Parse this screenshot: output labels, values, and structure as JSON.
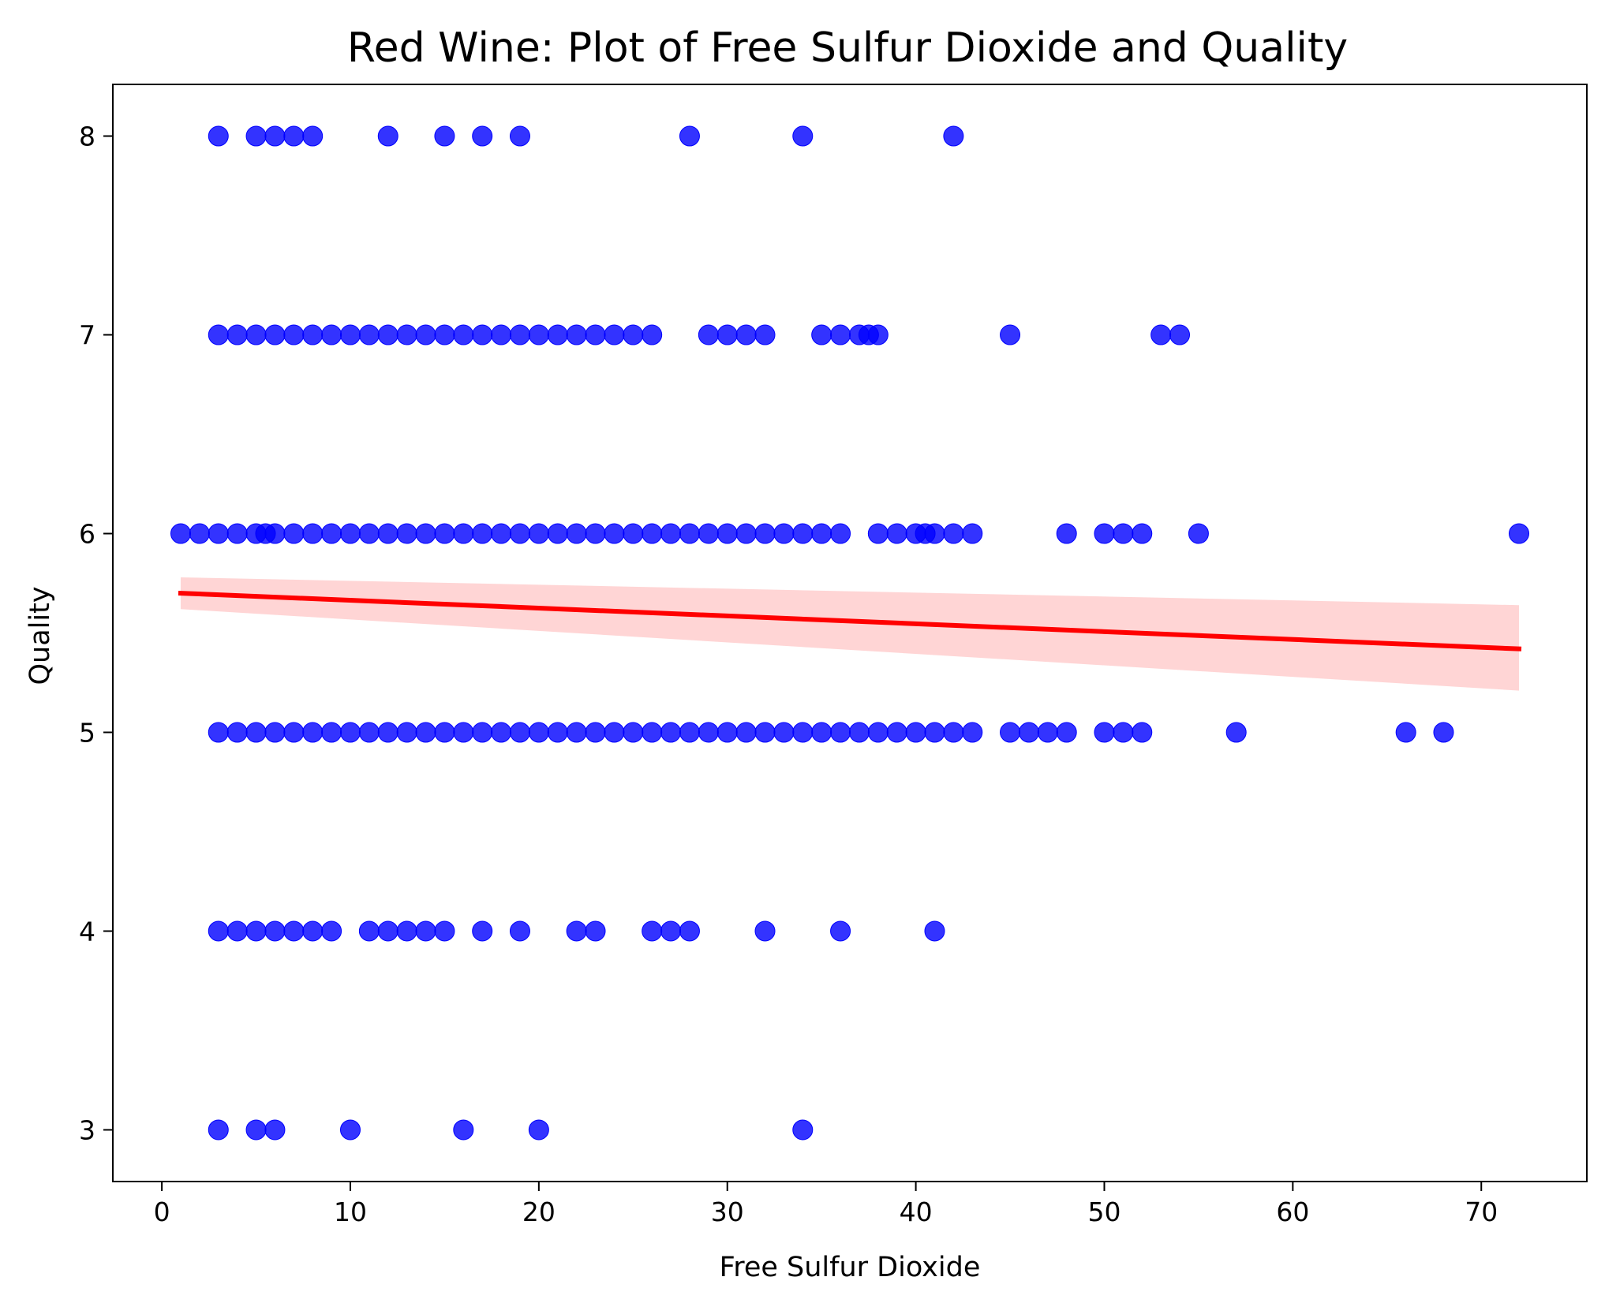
{
  "chart_data": {
    "type": "scatter",
    "title": "Red Wine: Plot of Free Sulfur Dioxide and Quality",
    "xlabel": "Free Sulfur Dioxide",
    "ylabel": "Quality",
    "xlim": [
      -2.6,
      75.6
    ],
    "ylim": [
      2.74,
      8.26
    ],
    "xticks": [
      0,
      10,
      20,
      30,
      40,
      50,
      60,
      70
    ],
    "yticks": [
      3,
      4,
      5,
      6,
      7,
      8
    ],
    "grid": false,
    "colors": {
      "points": "#0000ff",
      "fit_line": "#ff0000",
      "ci_band": "#ffb3b3"
    },
    "series": [
      {
        "type": "scatter",
        "points": [
          [
            3,
            8
          ],
          [
            5,
            8
          ],
          [
            6,
            8
          ],
          [
            7,
            8
          ],
          [
            8,
            8
          ],
          [
            12,
            8
          ],
          [
            15,
            8
          ],
          [
            17,
            8
          ],
          [
            19,
            8
          ],
          [
            28,
            8
          ],
          [
            34,
            8
          ],
          [
            42,
            8
          ],
          [
            3,
            7
          ],
          [
            4,
            7
          ],
          [
            5,
            7
          ],
          [
            6,
            7
          ],
          [
            7,
            7
          ],
          [
            8,
            7
          ],
          [
            9,
            7
          ],
          [
            10,
            7
          ],
          [
            11,
            7
          ],
          [
            12,
            7
          ],
          [
            13,
            7
          ],
          [
            14,
            7
          ],
          [
            15,
            7
          ],
          [
            16,
            7
          ],
          [
            17,
            7
          ],
          [
            18,
            7
          ],
          [
            19,
            7
          ],
          [
            20,
            7
          ],
          [
            21,
            7
          ],
          [
            22,
            7
          ],
          [
            23,
            7
          ],
          [
            24,
            7
          ],
          [
            25,
            7
          ],
          [
            26,
            7
          ],
          [
            29,
            7
          ],
          [
            30,
            7
          ],
          [
            31,
            7
          ],
          [
            32,
            7
          ],
          [
            35,
            7
          ],
          [
            36,
            7
          ],
          [
            37,
            7
          ],
          [
            37.5,
            7
          ],
          [
            38,
            7
          ],
          [
            45,
            7
          ],
          [
            53,
            7
          ],
          [
            54,
            7
          ],
          [
            1,
            6
          ],
          [
            2,
            6
          ],
          [
            3,
            6
          ],
          [
            4,
            6
          ],
          [
            5,
            6
          ],
          [
            5.5,
            6
          ],
          [
            6,
            6
          ],
          [
            7,
            6
          ],
          [
            8,
            6
          ],
          [
            9,
            6
          ],
          [
            10,
            6
          ],
          [
            11,
            6
          ],
          [
            12,
            6
          ],
          [
            13,
            6
          ],
          [
            14,
            6
          ],
          [
            15,
            6
          ],
          [
            16,
            6
          ],
          [
            17,
            6
          ],
          [
            18,
            6
          ],
          [
            19,
            6
          ],
          [
            20,
            6
          ],
          [
            21,
            6
          ],
          [
            22,
            6
          ],
          [
            23,
            6
          ],
          [
            24,
            6
          ],
          [
            25,
            6
          ],
          [
            26,
            6
          ],
          [
            27,
            6
          ],
          [
            28,
            6
          ],
          [
            29,
            6
          ],
          [
            30,
            6
          ],
          [
            31,
            6
          ],
          [
            32,
            6
          ],
          [
            33,
            6
          ],
          [
            34,
            6
          ],
          [
            35,
            6
          ],
          [
            36,
            6
          ],
          [
            38,
            6
          ],
          [
            39,
            6
          ],
          [
            40,
            6
          ],
          [
            40.5,
            6
          ],
          [
            41,
            6
          ],
          [
            42,
            6
          ],
          [
            43,
            6
          ],
          [
            48,
            6
          ],
          [
            50,
            6
          ],
          [
            51,
            6
          ],
          [
            52,
            6
          ],
          [
            55,
            6
          ],
          [
            72,
            6
          ],
          [
            3,
            5
          ],
          [
            4,
            5
          ],
          [
            5,
            5
          ],
          [
            6,
            5
          ],
          [
            7,
            5
          ],
          [
            8,
            5
          ],
          [
            9,
            5
          ],
          [
            10,
            5
          ],
          [
            11,
            5
          ],
          [
            12,
            5
          ],
          [
            13,
            5
          ],
          [
            14,
            5
          ],
          [
            15,
            5
          ],
          [
            16,
            5
          ],
          [
            17,
            5
          ],
          [
            18,
            5
          ],
          [
            19,
            5
          ],
          [
            20,
            5
          ],
          [
            21,
            5
          ],
          [
            22,
            5
          ],
          [
            23,
            5
          ],
          [
            24,
            5
          ],
          [
            25,
            5
          ],
          [
            26,
            5
          ],
          [
            27,
            5
          ],
          [
            28,
            5
          ],
          [
            29,
            5
          ],
          [
            30,
            5
          ],
          [
            31,
            5
          ],
          [
            32,
            5
          ],
          [
            33,
            5
          ],
          [
            34,
            5
          ],
          [
            35,
            5
          ],
          [
            36,
            5
          ],
          [
            37,
            5
          ],
          [
            38,
            5
          ],
          [
            39,
            5
          ],
          [
            40,
            5
          ],
          [
            41,
            5
          ],
          [
            42,
            5
          ],
          [
            43,
            5
          ],
          [
            45,
            5
          ],
          [
            46,
            5
          ],
          [
            47,
            5
          ],
          [
            48,
            5
          ],
          [
            50,
            5
          ],
          [
            51,
            5
          ],
          [
            52,
            5
          ],
          [
            57,
            5
          ],
          [
            66,
            5
          ],
          [
            68,
            5
          ],
          [
            3,
            4
          ],
          [
            4,
            4
          ],
          [
            5,
            4
          ],
          [
            6,
            4
          ],
          [
            7,
            4
          ],
          [
            8,
            4
          ],
          [
            9,
            4
          ],
          [
            11,
            4
          ],
          [
            12,
            4
          ],
          [
            13,
            4
          ],
          [
            14,
            4
          ],
          [
            15,
            4
          ],
          [
            17,
            4
          ],
          [
            19,
            4
          ],
          [
            22,
            4
          ],
          [
            23,
            4
          ],
          [
            26,
            4
          ],
          [
            27,
            4
          ],
          [
            28,
            4
          ],
          [
            32,
            4
          ],
          [
            36,
            4
          ],
          [
            41,
            4
          ],
          [
            3,
            3
          ],
          [
            5,
            3
          ],
          [
            6,
            3
          ],
          [
            10,
            3
          ],
          [
            16,
            3
          ],
          [
            20,
            3
          ],
          [
            34,
            3
          ]
        ]
      },
      {
        "type": "regression_line",
        "x": [
          1,
          72
        ],
        "y": [
          5.7,
          5.42
        ],
        "ci_lower": [
          5.62,
          5.21
        ],
        "ci_upper": [
          5.78,
          5.64
        ]
      }
    ]
  }
}
